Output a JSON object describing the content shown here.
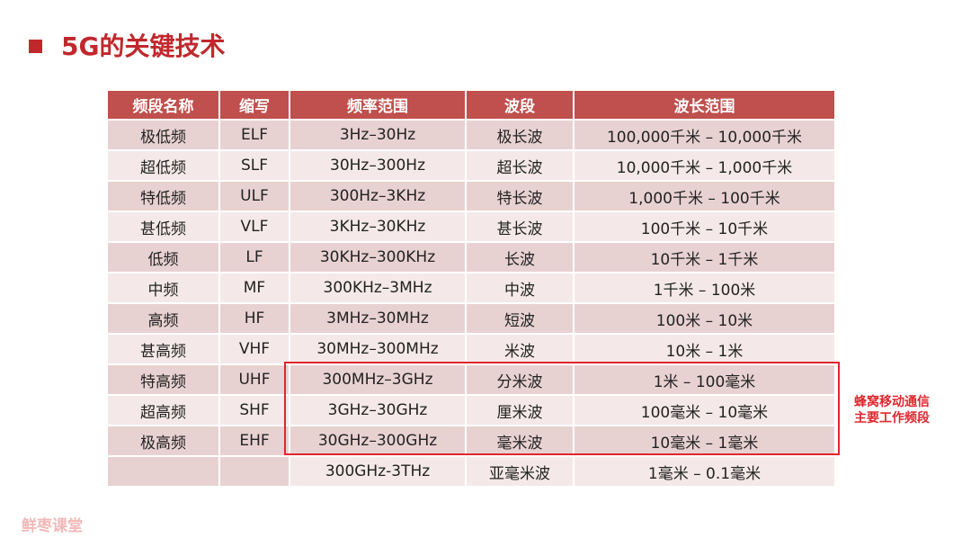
{
  "title": "5G的关键技术",
  "table": {
    "headers": [
      "频段名称",
      "缩写",
      "频率范围",
      "波段",
      "波长范围"
    ],
    "rows": [
      [
        "极低频",
        "ELF",
        "3Hz–30Hz",
        "极长波",
        "100,000千米 – 10,000千米"
      ],
      [
        "超低频",
        "SLF",
        "30Hz–300Hz",
        "超长波",
        "10,000千米 – 1,000千米"
      ],
      [
        "特低频",
        "ULF",
        "300Hz–3KHz",
        "特长波",
        "1,000千米 – 100千米"
      ],
      [
        "甚低频",
        "VLF",
        "3KHz–30KHz",
        "甚长波",
        "100千米 – 10千米"
      ],
      [
        "低频",
        "LF",
        "30KHz–300KHz",
        "长波",
        "10千米 – 1千米"
      ],
      [
        "中频",
        "MF",
        "300KHz–3MHz",
        "中波",
        "1千米 – 100米"
      ],
      [
        "高频",
        "HF",
        "3MHz–30MHz",
        "短波",
        "100米 – 10米"
      ],
      [
        "甚高频",
        "VHF",
        "30MHz–300MHz",
        "米波",
        "10米 – 1米"
      ],
      [
        "特高频",
        "UHF",
        "300MHz–3GHz",
        "分米波",
        "1米 – 100毫米"
      ],
      [
        "超高频",
        "SHF",
        "3GHz–30GHz",
        "厘米波",
        "100毫米 – 10毫米"
      ],
      [
        "极高频",
        "EHF",
        "30GHz–300GHz",
        "毫米波",
        "10毫米 – 1毫米"
      ],
      [
        "",
        "",
        "300GHz-3THz",
        "亚毫米波",
        "1毫米 – 0.1毫米"
      ]
    ]
  },
  "annotation": {
    "line1": "蜂窝移动通信",
    "line2": "主要工作频段"
  },
  "watermark": "鲜枣课堂",
  "colors": {
    "accent": "#c0282d",
    "header_bg": "#c0504d",
    "row_dark": "#e8d2d1",
    "row_light": "#f4e9e8",
    "highlight": "#e0272e"
  }
}
